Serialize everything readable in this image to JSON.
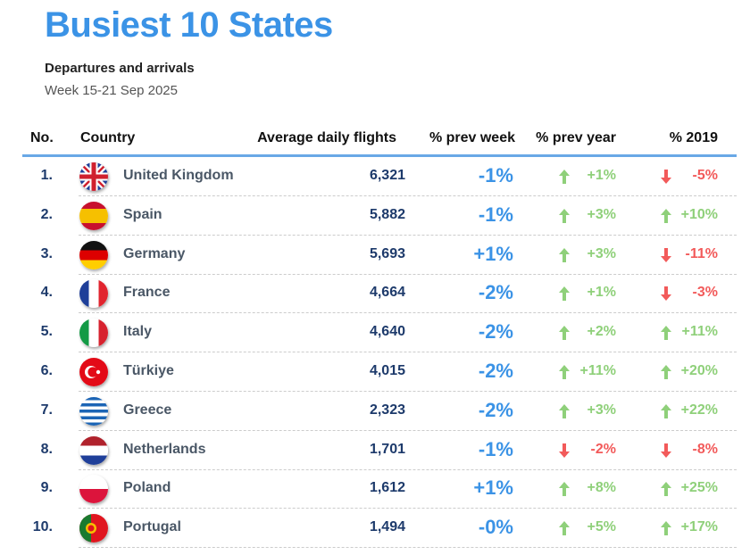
{
  "title": "Busiest 10 States",
  "subtitle": "Departures and arrivals",
  "week": "Week 15-21 Sep 2025",
  "colors": {
    "accent": "#3b93e6",
    "up": "#8fd07a",
    "down": "#f25a5a"
  },
  "chart_data": {
    "type": "table",
    "columns": [
      "No.",
      "Country",
      "Average daily flights",
      "% prev week",
      "% prev year",
      "% 2019"
    ],
    "rows": [
      {
        "no": "1.",
        "country": "United Kingdom",
        "flag": "uk",
        "avg": "6,321",
        "pw": "-1%",
        "py": "+1%",
        "py_dir": "up",
        "y19": "-5%",
        "y19_dir": "down"
      },
      {
        "no": "2.",
        "country": "Spain",
        "flag": "es",
        "avg": "5,882",
        "pw": "-1%",
        "py": "+3%",
        "py_dir": "up",
        "y19": "+10%",
        "y19_dir": "up"
      },
      {
        "no": "3.",
        "country": "Germany",
        "flag": "de",
        "avg": "5,693",
        "pw": "+1%",
        "py": "+3%",
        "py_dir": "up",
        "y19": "-11%",
        "y19_dir": "down"
      },
      {
        "no": "4.",
        "country": "France",
        "flag": "fr",
        "avg": "4,664",
        "pw": "-2%",
        "py": "+1%",
        "py_dir": "up",
        "y19": "-3%",
        "y19_dir": "down"
      },
      {
        "no": "5.",
        "country": "Italy",
        "flag": "it",
        "avg": "4,640",
        "pw": "-2%",
        "py": "+2%",
        "py_dir": "up",
        "y19": "+11%",
        "y19_dir": "up"
      },
      {
        "no": "6.",
        "country": "Türkiye",
        "flag": "tr",
        "avg": "4,015",
        "pw": "-2%",
        "py": "+11%",
        "py_dir": "up",
        "y19": "+20%",
        "y19_dir": "up"
      },
      {
        "no": "7.",
        "country": "Greece",
        "flag": "gr",
        "avg": "2,323",
        "pw": "-2%",
        "py": "+3%",
        "py_dir": "up",
        "y19": "+22%",
        "y19_dir": "up"
      },
      {
        "no": "8.",
        "country": "Netherlands",
        "flag": "nl",
        "avg": "1,701",
        "pw": "-1%",
        "py": "-2%",
        "py_dir": "down",
        "y19": "-8%",
        "y19_dir": "down"
      },
      {
        "no": "9.",
        "country": "Poland",
        "flag": "pl",
        "avg": "1,612",
        "pw": "+1%",
        "py": "+8%",
        "py_dir": "up",
        "y19": "+25%",
        "y19_dir": "up"
      },
      {
        "no": "10.",
        "country": "Portugal",
        "flag": "pt",
        "avg": "1,494",
        "pw": "-0%",
        "py": "+5%",
        "py_dir": "up",
        "y19": "+17%",
        "y19_dir": "up"
      }
    ]
  }
}
